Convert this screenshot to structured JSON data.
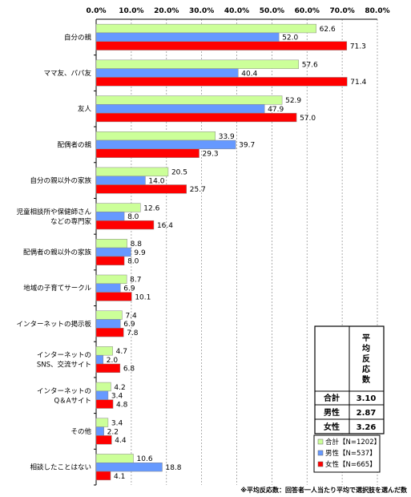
{
  "chart_data": {
    "type": "bar",
    "orientation": "horizontal",
    "xlim": [
      0,
      80
    ],
    "x_ticks": [
      "0.0%",
      "10.0%",
      "20.0%",
      "30.0%",
      "40.0%",
      "50.0%",
      "60.0%",
      "70.0%",
      "80.0%"
    ],
    "categories": [
      [
        "自分の親"
      ],
      [
        "ママ友、パパ友"
      ],
      [
        "友人"
      ],
      [
        "配偶者の親"
      ],
      [
        "自分の親以外の家族"
      ],
      [
        "児童相談所や保健師さん",
        "などの専門家"
      ],
      [
        "配偶者の親以外の家族"
      ],
      [
        "地域の子育てサークル"
      ],
      [
        "インターネットの掲示板"
      ],
      [
        "インターネットの",
        "SNS、交流サイト"
      ],
      [
        "インターネットの",
        "Q＆Aサイト"
      ],
      [
        "その他"
      ],
      [
        "相談したことはない"
      ]
    ],
    "series": [
      {
        "name": "合計【N=1202】",
        "color": "#ccff99",
        "values": [
          62.6,
          57.6,
          52.9,
          33.9,
          20.5,
          12.6,
          8.8,
          8.7,
          7.4,
          4.7,
          4.2,
          3.4,
          10.6
        ]
      },
      {
        "name": "男性【N=537】",
        "color": "#6699ff",
        "values": [
          52.0,
          40.4,
          47.9,
          39.7,
          14.0,
          8.0,
          9.9,
          6.9,
          6.9,
          2.0,
          3.4,
          2.2,
          18.8
        ]
      },
      {
        "name": "女性【N=665】",
        "color": "#ff0000",
        "values": [
          71.3,
          71.4,
          57.0,
          29.3,
          25.7,
          16.4,
          8.0,
          10.1,
          7.8,
          6.8,
          4.8,
          4.4,
          4.1
        ]
      }
    ],
    "grid": true,
    "legend_position": "bottom-right"
  },
  "average_box": {
    "title_chars": [
      "平",
      "均",
      "反",
      "応",
      "数"
    ],
    "rows": [
      {
        "label": "合計",
        "value": "3.10"
      },
      {
        "label": "男性",
        "value": "2.87"
      },
      {
        "label": "女性",
        "value": "3.26"
      }
    ]
  },
  "footnote": "※平均反応数：回答者一人当たり平均で選択肢を選んだ数"
}
